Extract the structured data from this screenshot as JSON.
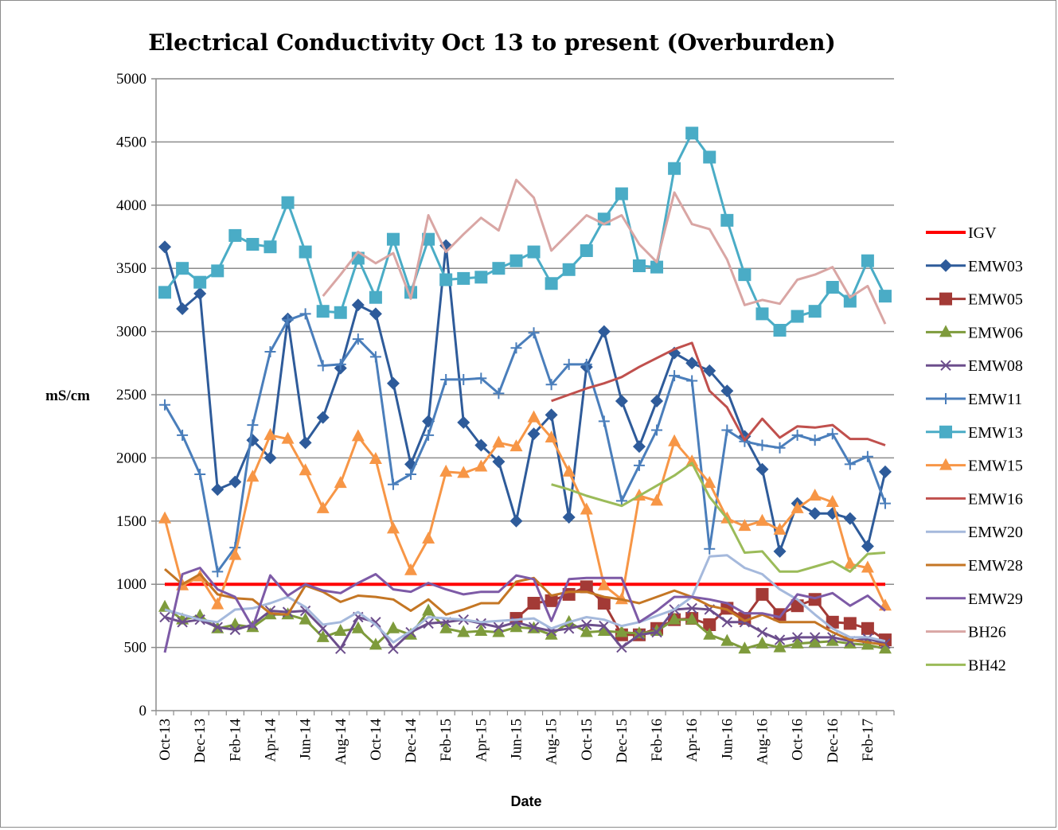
{
  "chart_data": {
    "type": "line",
    "title": "Electrical Conductivity Oct 13 to present (Overburden)",
    "xlabel": "Date",
    "ylabel": "mS/cm",
    "ylim": [
      0,
      5000
    ],
    "yticks": [
      0,
      500,
      1000,
      1500,
      2000,
      2500,
      3000,
      3500,
      4000,
      4500,
      5000
    ],
    "x": [
      "Oct-13",
      "Nov-13",
      "Dec-13",
      "Jan-14",
      "Feb-14",
      "Mar-14",
      "Apr-14",
      "May-14",
      "Jun-14",
      "Jul-14",
      "Aug-14",
      "Sep-14",
      "Oct-14",
      "Nov-14",
      "Dec-14",
      "Jan-15",
      "Feb-15",
      "Mar-15",
      "Apr-15",
      "May-15",
      "Jun-15",
      "Jul-15",
      "Aug-15",
      "Sep-15",
      "Oct-15",
      "Nov-15",
      "Dec-15",
      "Jan-16",
      "Feb-16",
      "Mar-16",
      "Apr-16",
      "May-16",
      "Jun-16",
      "Jul-16",
      "Aug-16",
      "Sep-16",
      "Oct-16",
      "Nov-16",
      "Dec-16",
      "Jan-17",
      "Feb-17",
      "Mar-17"
    ],
    "x_tick_labels": [
      "Oct-13",
      "Dec-13",
      "Feb-14",
      "Apr-14",
      "Jun-14",
      "Aug-14",
      "Oct-14",
      "Dec-14",
      "Feb-15",
      "Apr-15",
      "Jun-15",
      "Aug-15",
      "Oct-15",
      "Dec-15",
      "Feb-16",
      "Apr-16",
      "Jun-16",
      "Aug-16",
      "Oct-16",
      "Dec-16",
      "Feb-17"
    ],
    "grid": "horizontal",
    "legend_position": "right",
    "series": [
      {
        "name": "IGV",
        "color": "#ff0000",
        "marker": "none",
        "width": 4,
        "values": [
          1000,
          1000,
          1000,
          1000,
          1000,
          1000,
          1000,
          1000,
          1000,
          1000,
          1000,
          1000,
          1000,
          1000,
          1000,
          1000,
          1000,
          1000,
          1000,
          1000,
          1000,
          1000,
          1000,
          1000,
          1000,
          1000,
          1000,
          1000,
          1000,
          1000,
          1000,
          1000,
          1000,
          1000,
          1000,
          1000,
          1000,
          1000,
          1000,
          1000,
          1000,
          1000
        ]
      },
      {
        "name": "EMW03",
        "color": "#2e5b9a",
        "marker": "diamond",
        "width": 3,
        "values": [
          3670,
          3180,
          3300,
          1750,
          1810,
          2140,
          2000,
          3100,
          2120,
          2320,
          2710,
          3210,
          3140,
          2590,
          1950,
          2290,
          3680,
          2280,
          2100,
          1970,
          1500,
          2190,
          2340,
          1530,
          2720,
          3000,
          2450,
          2090,
          2450,
          2830,
          2750,
          2690,
          2530,
          2170,
          1910,
          1260,
          1640,
          1560,
          1560,
          1520,
          1300,
          1890
        ]
      },
      {
        "name": "EMW05",
        "color": "#a33a36",
        "marker": "square",
        "width": 3,
        "values": [
          null,
          null,
          null,
          null,
          null,
          null,
          null,
          null,
          null,
          null,
          null,
          null,
          null,
          null,
          null,
          null,
          null,
          null,
          null,
          null,
          730,
          850,
          870,
          920,
          980,
          850,
          600,
          600,
          650,
          720,
          730,
          680,
          810,
          730,
          920,
          760,
          830,
          880,
          700,
          690,
          650,
          560
        ]
      },
      {
        "name": "EMW06",
        "color": "#7e9b3c",
        "marker": "triangle",
        "width": 3,
        "values": [
          820,
          720,
          750,
          650,
          680,
          660,
          760,
          760,
          720,
          580,
          630,
          650,
          520,
          650,
          600,
          790,
          650,
          620,
          630,
          620,
          660,
          650,
          600,
          700,
          620,
          630,
          620,
          610,
          630,
          720,
          720,
          600,
          550,
          490,
          530,
          500,
          530,
          540,
          550,
          530,
          520,
          490
        ]
      },
      {
        "name": "EMW08",
        "color": "#6c4e8c",
        "marker": "x",
        "width": 3,
        "values": [
          740,
          700,
          720,
          660,
          640,
          680,
          790,
          780,
          790,
          650,
          490,
          740,
          700,
          490,
          620,
          690,
          700,
          720,
          690,
          660,
          700,
          660,
          630,
          650,
          680,
          670,
          500,
          600,
          620,
          800,
          810,
          800,
          700,
          700,
          620,
          560,
          580,
          580,
          580,
          550,
          570,
          530
        ]
      },
      {
        "name": "EMW11",
        "color": "#4a7ebb",
        "marker": "plus",
        "width": 3,
        "values": [
          2420,
          2180,
          1870,
          1100,
          1290,
          2260,
          2840,
          3090,
          3140,
          2730,
          2740,
          2940,
          2800,
          1790,
          1870,
          2180,
          2620,
          2620,
          2630,
          2510,
          2870,
          2990,
          2580,
          2740,
          2740,
          2290,
          1660,
          1940,
          2220,
          2650,
          2610,
          1280,
          2220,
          2130,
          2100,
          2080,
          2180,
          2140,
          2190,
          1950,
          2010,
          1640
        ]
      },
      {
        "name": "EMW13",
        "color": "#4aacc6",
        "marker": "square",
        "width": 3,
        "values": [
          3310,
          3500,
          3390,
          3480,
          3760,
          3690,
          3670,
          4020,
          3630,
          3160,
          3150,
          3580,
          3270,
          3730,
          3310,
          3730,
          3410,
          3420,
          3430,
          3500,
          3560,
          3630,
          3380,
          3490,
          3640,
          3890,
          4090,
          3520,
          3510,
          4290,
          4570,
          4380,
          3880,
          3450,
          3140,
          3010,
          3120,
          3160,
          3350,
          3240,
          3560,
          3280
        ]
      },
      {
        "name": "EMW15",
        "color": "#f79646",
        "marker": "triangle",
        "width": 3,
        "values": [
          1520,
          990,
          1060,
          840,
          1230,
          1850,
          2180,
          2150,
          1900,
          1600,
          1800,
          2170,
          1990,
          1440,
          1110,
          1360,
          1890,
          1880,
          1930,
          2120,
          2090,
          2320,
          2160,
          1890,
          1590,
          990,
          880,
          1700,
          1660,
          2130,
          1970,
          1800,
          1520,
          1460,
          1500,
          1430,
          1600,
          1700,
          1650,
          1160,
          1130,
          830
        ]
      },
      {
        "name": "EMW16",
        "color": "#c0504d",
        "marker": "none",
        "width": 3,
        "values": [
          null,
          null,
          null,
          null,
          null,
          null,
          null,
          null,
          null,
          null,
          null,
          null,
          null,
          null,
          null,
          null,
          null,
          null,
          null,
          null,
          null,
          null,
          2450,
          2500,
          2550,
          2590,
          2640,
          2720,
          2790,
          2860,
          2910,
          2530,
          2400,
          2140,
          2310,
          2160,
          2250,
          2240,
          2260,
          2150,
          2150,
          2100
        ]
      },
      {
        "name": "EMW20",
        "color": "#a5b9dc",
        "marker": "none",
        "width": 3,
        "values": [
          800,
          760,
          720,
          700,
          800,
          810,
          850,
          900,
          820,
          680,
          700,
          780,
          680,
          540,
          630,
          740,
          730,
          720,
          700,
          710,
          720,
          730,
          650,
          700,
          740,
          720,
          670,
          700,
          750,
          800,
          900,
          1220,
          1230,
          1130,
          1080,
          960,
          880,
          760,
          650,
          580,
          580,
          550
        ]
      },
      {
        "name": "EMW28",
        "color": "#c47624",
        "marker": "none",
        "width": 3,
        "values": [
          1120,
          1000,
          1080,
          920,
          890,
          880,
          770,
          760,
          990,
          940,
          860,
          910,
          900,
          880,
          790,
          880,
          760,
          800,
          850,
          850,
          1020,
          1050,
          910,
          940,
          940,
          900,
          880,
          850,
          900,
          950,
          900,
          830,
          800,
          710,
          760,
          700,
          700,
          700,
          620,
          560,
          540,
          520
        ]
      },
      {
        "name": "EMW29",
        "color": "#7d5aa6",
        "marker": "none",
        "width": 3,
        "values": [
          460,
          1080,
          1130,
          960,
          900,
          660,
          1070,
          910,
          1000,
          950,
          930,
          1010,
          1080,
          960,
          940,
          1010,
          960,
          920,
          940,
          940,
          1070,
          1040,
          710,
          1040,
          1050,
          1050,
          1050,
          700,
          790,
          900,
          900,
          880,
          850,
          770,
          770,
          740,
          920,
          890,
          930,
          830,
          910,
          790
        ]
      },
      {
        "name": "BH26",
        "color": "#d9a6a4",
        "marker": "none",
        "width": 3,
        "values": [
          null,
          null,
          null,
          null,
          null,
          null,
          null,
          null,
          null,
          3280,
          3450,
          3630,
          3540,
          3620,
          3260,
          3920,
          3630,
          3770,
          3900,
          3800,
          4200,
          4060,
          3640,
          3780,
          3920,
          3850,
          3920,
          3690,
          3550,
          4100,
          3850,
          3810,
          3570,
          3210,
          3250,
          3220,
          3410,
          3450,
          3510,
          3270,
          3360,
          3060
        ]
      },
      {
        "name": "BH42",
        "color": "#9bbb59",
        "marker": "none",
        "width": 3,
        "values": [
          null,
          null,
          null,
          null,
          null,
          null,
          null,
          null,
          null,
          null,
          null,
          null,
          null,
          null,
          null,
          null,
          null,
          null,
          null,
          null,
          null,
          null,
          1790,
          1750,
          1700,
          1660,
          1620,
          1700,
          1780,
          1860,
          1960,
          1690,
          1520,
          1250,
          1260,
          1100,
          1100,
          1140,
          1180,
          1100,
          1240,
          1250
        ]
      }
    ]
  }
}
